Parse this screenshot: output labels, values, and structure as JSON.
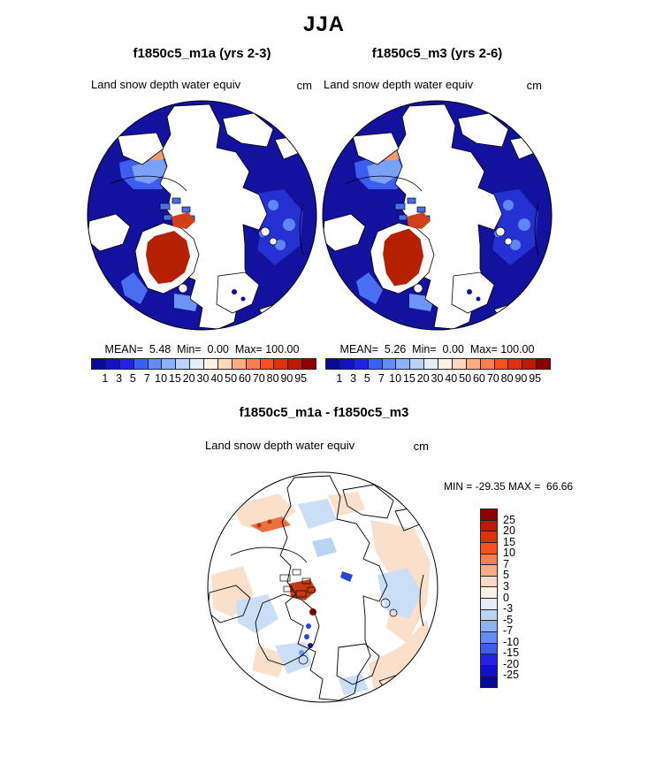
{
  "title": "JJA",
  "panels": [
    {
      "title": "f1850c5_m1a (yrs 2-3)",
      "field_label": "Land snow depth water equiv",
      "units": "cm",
      "stats_text": "MEAN=  5.48  Min=  0.00  Max= 100.00",
      "colorbar_ticks": [
        "1",
        "3",
        "5",
        "7",
        "10",
        "15",
        "20",
        "30",
        "40",
        "50",
        "60",
        "70",
        "80",
        "90",
        "95"
      ]
    },
    {
      "title": "f1850c5_m3 (yrs 2-6)",
      "field_label": "Land snow depth water equiv",
      "units": "cm",
      "stats_text": "MEAN=  5.26  Min=  0.00  Max= 100.00",
      "colorbar_ticks": [
        "1",
        "3",
        "5",
        "7",
        "10",
        "15",
        "20",
        "30",
        "40",
        "50",
        "60",
        "70",
        "80",
        "90",
        "95"
      ]
    }
  ],
  "difference": {
    "title": "f1850c5_m1a - f1850c5_m3",
    "field_label": "Land snow depth water equiv",
    "units": "cm",
    "range_text": "MIN = -29.35 MAX =  66.66",
    "colorbar_ticks": [
      "25",
      "20",
      "15",
      "10",
      "7",
      "5",
      "3",
      "0",
      "-3",
      "-5",
      "-7",
      "-10",
      "-15",
      "-20",
      "-25"
    ]
  },
  "colors": {
    "palette": [
      "#08089b",
      "#1111c6",
      "#2222e4",
      "#3a5ff2",
      "#628cf6",
      "#8fb1f9",
      "#bcd2fb",
      "#e3eefc",
      "#fdf1e4",
      "#fbd8c0",
      "#faac83",
      "#f97f4e",
      "#f8511e",
      "#e0300c",
      "#bb1a04",
      "#8b0000"
    ],
    "ocean": "#12129e",
    "missing_land": "#ffffff",
    "greenland_max": "#b42000",
    "coastline": "#000000",
    "diff_positive_light": "#fae0cb",
    "diff_negative_light": "#cadef5"
  }
}
